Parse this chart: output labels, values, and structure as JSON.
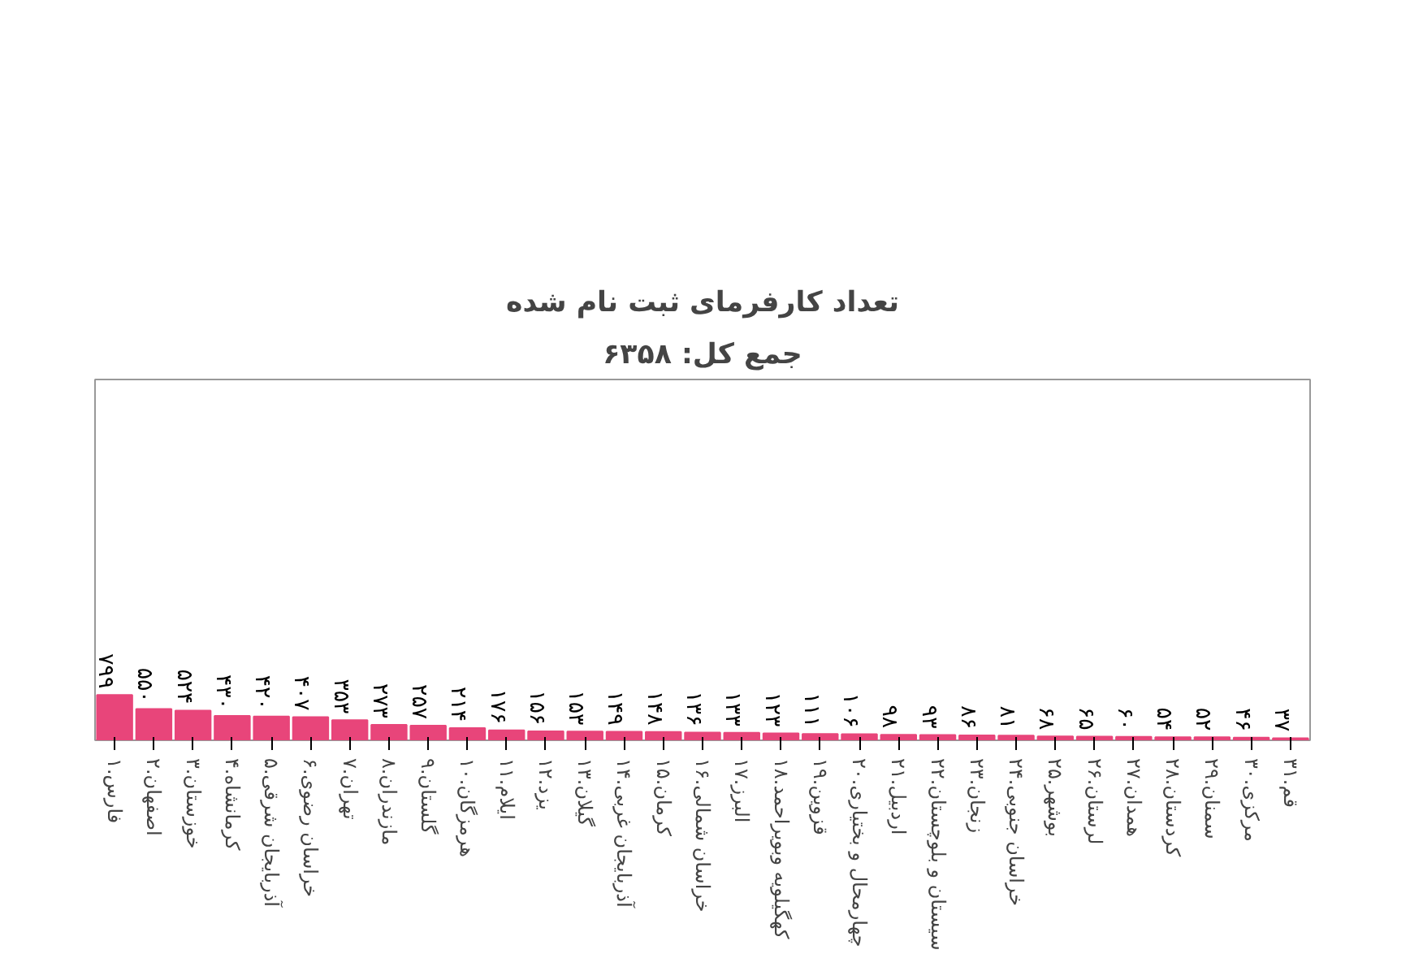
{
  "chart_data": {
    "type": "bar",
    "title": "تعداد کارفرمای ثبت نام شده",
    "subtitle": "جمع کل: ۶۳۵۸",
    "categories": [
      "۱.فارس",
      "۲.اصفهان",
      "۳.خوزستان",
      "۴.کرمانشاه",
      "۵.آذربایجان شرقی",
      "۶.خراسان رضوی",
      "۷.تهران",
      "۸.مازندران",
      "۹.گلستان",
      "۱۰.هرمزگان",
      "۱۱.ایلام",
      "۱۲.یزد",
      "۱۳.گیلان",
      "۱۴.آذربایجان غربی",
      "۱۵.کرمان",
      "۱۶.خراسان شمالی",
      "۱۷.البرز",
      "۱۸.کهگیلویه وبویراحمد",
      "۱۹.قزوین",
      "۲۰.چهارمحال و بختیاری",
      "۲۱.اردبیل",
      "۲۲.سیستان و بلوچستان",
      "۲۳.زنجان",
      "۲۴.خراسان جنوبی",
      "۲۵.بوشهر",
      "۲۶.لرستان",
      "۲۷.همدان",
      "۲۸.کردستان",
      "۲۹.سمنان",
      "۳۰.مرکزی",
      "۳۱.قم"
    ],
    "values": [
      799,
      550,
      524,
      430,
      420,
      407,
      353,
      273,
      257,
      214,
      176,
      156,
      153,
      149,
      148,
      136,
      133,
      123,
      111,
      106,
      98,
      93,
      86,
      81,
      68,
      65,
      60,
      54,
      52,
      46,
      37
    ],
    "value_labels": [
      "۷۹۹",
      "۵۵۰",
      "۵۲۴",
      "۴۳۰",
      "۴۲۰",
      "۴۰۷",
      "۳۵۳",
      "۲۷۳",
      "۲۵۷",
      "۲۱۴",
      "۱۷۶",
      "۱۵۶",
      "۱۵۳",
      "۱۴۹",
      "۱۴۸",
      "۱۳۶",
      "۱۳۳",
      "۱۲۳",
      "۱۱۱",
      "۱۰۶",
      "۹۸",
      "۹۳",
      "۸۶",
      "۸۱",
      "۶۸",
      "۶۵",
      "۶۰",
      "۵۴",
      "۵۲",
      "۴۶",
      "۳۷"
    ],
    "color": "#e8457a",
    "ylim": [
      0,
      6358
    ],
    "tick_labels": "x",
    "grid": false
  }
}
